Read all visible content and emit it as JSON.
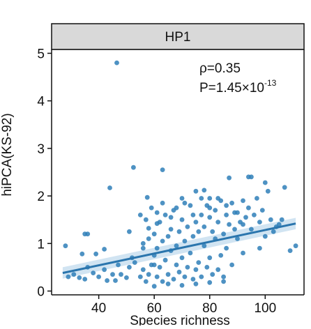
{
  "chart_data": {
    "type": "scatter",
    "panel_title": "HP1",
    "xlabel": "Species richness",
    "ylabel": "hiPCA(KS-92)",
    "xlim": [
      23,
      114
    ],
    "ylim": [
      -0.08,
      5.08
    ],
    "x_ticks": [
      40,
      60,
      80,
      100
    ],
    "y_ticks": [
      0,
      1,
      2,
      3,
      4,
      5
    ],
    "grid": false,
    "annotation": {
      "rho_text": "ρ=0.35",
      "p_text": "P=1.45×10",
      "p_exponent": "-13"
    },
    "colors": {
      "points": "#2f7fb8",
      "fit_line": "#2a75ad",
      "ci_band": "#c9dff0",
      "strip_fill": "#d9d9d9",
      "axis": "#111111"
    },
    "fit": {
      "x": [
        27,
        111
      ],
      "y": [
        0.38,
        1.42
      ],
      "ci_halfwidth": [
        0.12,
        0.12
      ]
    },
    "points": [
      [
        46.5,
        4.8
      ],
      [
        52.5,
        2.6
      ],
      [
        63,
        2.55
      ],
      [
        44,
        2.17
      ],
      [
        94,
        2.4
      ],
      [
        95,
        2.4
      ],
      [
        87,
        2.38
      ],
      [
        107,
        2.18
      ],
      [
        100,
        2.28
      ],
      [
        101,
        2.1
      ],
      [
        75,
        2.1
      ],
      [
        78,
        2.12
      ],
      [
        80,
        1.95
      ],
      [
        70,
        1.95
      ],
      [
        57.5,
        1.97
      ],
      [
        28,
        0.95
      ],
      [
        35,
        1.2
      ],
      [
        36,
        1.2
      ],
      [
        34,
        0.78
      ],
      [
        39,
        0.78
      ],
      [
        42,
        0.88
      ],
      [
        51,
        1.25
      ],
      [
        58,
        1.32
      ],
      [
        61,
        1.42
      ],
      [
        55,
        1.6
      ],
      [
        56,
        0.9
      ],
      [
        60,
        0.55
      ],
      [
        29,
        0.3
      ],
      [
        31,
        0.35
      ],
      [
        33,
        0.28
      ],
      [
        35,
        0.25
      ],
      [
        36,
        0.5
      ],
      [
        38,
        0.38
      ],
      [
        40,
        0.3
      ],
      [
        42,
        0.45
      ],
      [
        43,
        0.22
      ],
      [
        45,
        0.35
      ],
      [
        46,
        0.22
      ],
      [
        47,
        0.55
      ],
      [
        48,
        0.35
      ],
      [
        50,
        0.28
      ],
      [
        51,
        0.5
      ],
      [
        52,
        0.7
      ],
      [
        53,
        0.6
      ],
      [
        55,
        0.3
      ],
      [
        56,
        0.45
      ],
      [
        57,
        0.2
      ],
      [
        58,
        0.35
      ],
      [
        59,
        0.55
      ],
      [
        60,
        0.75
      ],
      [
        61,
        0.3
      ],
      [
        62,
        0.5
      ],
      [
        63,
        0.2
      ],
      [
        64,
        0.65
      ],
      [
        65,
        0.35
      ],
      [
        66,
        0.85
      ],
      [
        67,
        0.25
      ],
      [
        68,
        0.55
      ],
      [
        69,
        0.4
      ],
      [
        70,
        0.7
      ],
      [
        71,
        0.3
      ],
      [
        72,
        0.5
      ],
      [
        73,
        0.8
      ],
      [
        74,
        0.25
      ],
      [
        75,
        0.45
      ],
      [
        76,
        0.6
      ],
      [
        77,
        0.3
      ],
      [
        78,
        0.95
      ],
      [
        79,
        0.5
      ],
      [
        80,
        0.7
      ],
      [
        81,
        0.35
      ],
      [
        82,
        1.1
      ],
      [
        83,
        0.45
      ],
      [
        84,
        0.75
      ],
      [
        85,
        0.3
      ],
      [
        86,
        0.9
      ],
      [
        88,
        0.55
      ],
      [
        90,
        1.1
      ],
      [
        92,
        0.8
      ],
      [
        95,
        1.3
      ],
      [
        98,
        0.9
      ],
      [
        100,
        1.15
      ],
      [
        104,
        1.35
      ],
      [
        106,
        1.5
      ],
      [
        109,
        0.85
      ],
      [
        111,
        0.95
      ],
      [
        56,
        1.0
      ],
      [
        58,
        1.1
      ],
      [
        60,
        1.2
      ],
      [
        61,
        0.9
      ],
      [
        62,
        1.45
      ],
      [
        63,
        1.05
      ],
      [
        64,
        1.6
      ],
      [
        65,
        1.15
      ],
      [
        66,
        1.3
      ],
      [
        67,
        1.7
      ],
      [
        68,
        0.95
      ],
      [
        69,
        1.25
      ],
      [
        70,
        1.5
      ],
      [
        71,
        1.05
      ],
      [
        72,
        1.35
      ],
      [
        73,
        1.8
      ],
      [
        74,
        1.15
      ],
      [
        75,
        1.45
      ],
      [
        76,
        1.25
      ],
      [
        77,
        1.6
      ],
      [
        78,
        1.35
      ],
      [
        79,
        1.8
      ],
      [
        80,
        1.55
      ],
      [
        81,
        1.25
      ],
      [
        82,
        1.7
      ],
      [
        83,
        1.45
      ],
      [
        84,
        1.9
      ],
      [
        85,
        1.2
      ],
      [
        86,
        1.6
      ],
      [
        87,
        1.4
      ],
      [
        88,
        1.85
      ],
      [
        89,
        1.3
      ],
      [
        90,
        1.65
      ],
      [
        91,
        1.45
      ],
      [
        92,
        1.9
      ],
      [
        93,
        1.55
      ],
      [
        94,
        1.75
      ],
      [
        96,
        1.6
      ],
      [
        97,
        1.95
      ],
      [
        98,
        1.45
      ],
      [
        99,
        1.7
      ],
      [
        102,
        1.5
      ],
      [
        103,
        1.25
      ],
      [
        105,
        1.4
      ],
      [
        57,
        1.5
      ],
      [
        59,
        1.75
      ],
      [
        61,
        1.65
      ],
      [
        63,
        1.85
      ],
      [
        66,
        1.55
      ],
      [
        68,
        1.75
      ],
      [
        71,
        1.85
      ],
      [
        74,
        1.6
      ],
      [
        77,
        1.95
      ],
      [
        80,
        1.75
      ],
      [
        83,
        1.95
      ],
      [
        86,
        1.8
      ],
      [
        89,
        1.65
      ],
      [
        92,
        1.4
      ],
      [
        65,
        0.15
      ],
      [
        70,
        0.12
      ],
      [
        75,
        0.15
      ],
      [
        80,
        0.18
      ],
      [
        60,
        0.1
      ],
      [
        85,
        0.2
      ]
    ]
  }
}
